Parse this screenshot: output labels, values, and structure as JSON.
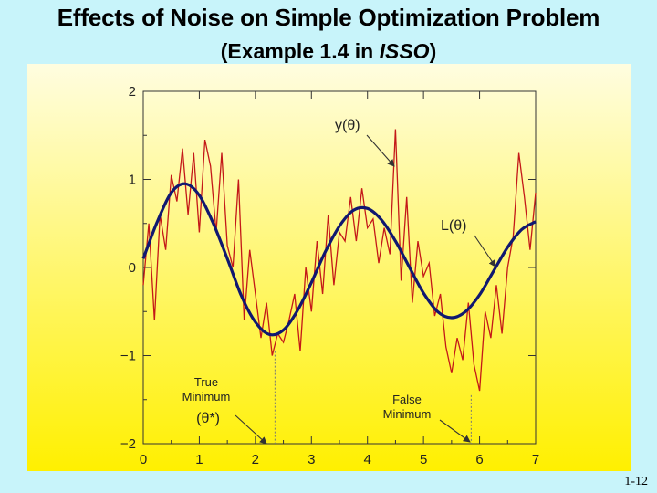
{
  "title_line1": "Effects of Noise on Simple Optimization Problem",
  "title_line2_prefix": "(Example 1.4 in ",
  "title_line2_italic": "ISSO",
  "title_line2_suffix": ")",
  "slide_number": "1-12",
  "colors": {
    "background": "#c8f4fa",
    "panel_top": "#fffde0",
    "panel_bottom": "#fff000",
    "loss_curve": "#101870",
    "noisy_curve": "#c41818",
    "axis": "#333333"
  },
  "chart_data": {
    "type": "line",
    "xlim": [
      0,
      7
    ],
    "ylim": [
      -2,
      2
    ],
    "x_ticks": [
      "0",
      "1",
      "2",
      "3",
      "4",
      "5",
      "6",
      "7"
    ],
    "y_ticks": [
      "2",
      "1",
      "0",
      "−1",
      "−2"
    ],
    "grid": false,
    "series": [
      {
        "name": "L(θ)",
        "style": "smooth",
        "x": [
          0,
          0.25,
          0.5,
          0.75,
          1,
          1.25,
          1.5,
          1.75,
          2,
          2.25,
          2.5,
          2.75,
          3,
          3.25,
          3.5,
          3.75,
          4,
          4.25,
          4.5,
          4.75,
          5,
          5.25,
          5.5,
          5.75,
          6,
          6.25,
          6.5,
          6.75,
          7
        ],
        "y": [
          0.1,
          0.52,
          0.85,
          0.95,
          0.82,
          0.5,
          0.1,
          -0.32,
          -0.62,
          -0.76,
          -0.71,
          -0.49,
          -0.17,
          0.18,
          0.47,
          0.65,
          0.67,
          0.54,
          0.3,
          0.0,
          -0.29,
          -0.5,
          -0.57,
          -0.5,
          -0.31,
          -0.04,
          0.23,
          0.43,
          0.52
        ]
      },
      {
        "name": "y(θ)",
        "style": "noisy",
        "x": [
          0,
          0.1,
          0.2,
          0.3,
          0.4,
          0.5,
          0.6,
          0.7,
          0.8,
          0.9,
          1.0,
          1.1,
          1.2,
          1.3,
          1.4,
          1.5,
          1.6,
          1.7,
          1.8,
          1.9,
          2.0,
          2.1,
          2.2,
          2.3,
          2.4,
          2.5,
          2.6,
          2.7,
          2.8,
          2.9,
          3.0,
          3.1,
          3.2,
          3.3,
          3.4,
          3.5,
          3.6,
          3.7,
          3.8,
          3.9,
          4.0,
          4.1,
          4.2,
          4.3,
          4.4,
          4.5,
          4.6,
          4.7,
          4.8,
          4.9,
          5.0,
          5.1,
          5.2,
          5.3,
          5.4,
          5.5,
          5.6,
          5.7,
          5.8,
          5.9,
          6.0,
          6.1,
          6.2,
          6.3,
          6.4,
          6.5,
          6.6,
          6.7,
          6.8,
          6.9,
          7.0
        ],
        "y": [
          -0.2,
          0.5,
          -0.6,
          0.6,
          0.2,
          1.05,
          0.75,
          1.35,
          0.6,
          1.3,
          0.4,
          1.45,
          1.15,
          0.4,
          1.3,
          0.25,
          0.0,
          1.0,
          -0.6,
          0.2,
          -0.3,
          -0.8,
          -0.4,
          -1.0,
          -0.75,
          -0.85,
          -0.6,
          -0.3,
          -0.95,
          0.0,
          -0.5,
          0.3,
          -0.3,
          0.6,
          -0.2,
          0.4,
          0.3,
          0.8,
          0.3,
          0.9,
          0.45,
          0.55,
          0.05,
          0.45,
          0.15,
          1.57,
          -0.15,
          0.8,
          -0.4,
          0.3,
          -0.1,
          0.05,
          -0.55,
          -0.3,
          -0.9,
          -1.2,
          -0.8,
          -1.05,
          -0.4,
          -1.1,
          -1.4,
          -0.5,
          -0.8,
          -0.2,
          -0.75,
          0.0,
          0.35,
          1.3,
          0.8,
          0.2,
          0.85
        ]
      }
    ],
    "annotations": [
      {
        "text": "y(θ)"
      },
      {
        "text": "L(θ)"
      },
      {
        "text": "True",
        "text2": "Minimum",
        "text3": "(θ*)",
        "x": 2.35
      },
      {
        "text": "False",
        "text2": "Minimum",
        "x": 5.85
      }
    ]
  }
}
